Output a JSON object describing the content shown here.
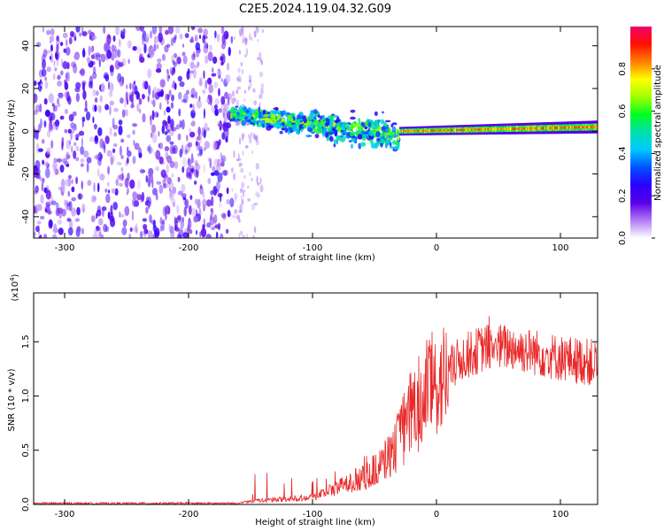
{
  "title": "C2E5.2024.119.04.32.G09",
  "chart_data": [
    {
      "type": "heatmap",
      "xlabel": "Height of straight line (km)",
      "ylabel": "Frequency (Hz)",
      "xlim": [
        -325,
        130
      ],
      "ylim": [
        -50,
        49
      ],
      "x_ticks": [
        -300,
        -200,
        -100,
        0,
        100
      ],
      "y_ticks": [
        -40,
        -20,
        0,
        20,
        40
      ],
      "colorbar": {
        "label": "Normalized spectral amplitude",
        "range": [
          0,
          1
        ],
        "ticks": [
          "0.0",
          "0.2",
          "0.4",
          "0.6",
          "0.8"
        ],
        "colors": [
          "#ffffff",
          "#b07cf5",
          "#5b00e8",
          "#2a00ff",
          "#0050ff",
          "#00c8ff",
          "#00e0b0",
          "#00ff20",
          "#a0ff00",
          "#ffff00",
          "#ff8000",
          "#ff1000",
          "#f0006e"
        ]
      },
      "regions": [
        {
          "x_range": [
            -325,
            -165
          ],
          "freq_range": [
            -50,
            49
          ],
          "pattern": "broadband noise",
          "amplitude": 0.15
        },
        {
          "x_range": [
            -165,
            -30
          ],
          "freq_center": [
            8,
            -2
          ],
          "freq_spread": [
            6,
            12
          ],
          "pattern": "scattered blobs",
          "amplitude": 0.35
        },
        {
          "x_range": [
            -30,
            130
          ],
          "freq_center": [
            0,
            2
          ],
          "freq_spread": [
            2,
            3
          ],
          "pattern": "narrow line",
          "amplitude": 0.9
        }
      ]
    },
    {
      "type": "line",
      "xlabel": "Height of straight line (km)",
      "ylabel": "SNR (10 * v/v)",
      "yscale_label": "(x10",
      "yscale_exp": "4",
      "yscale_close": ")",
      "xlim": [
        -325,
        130
      ],
      "ylim": [
        0,
        1.95
      ],
      "x_ticks": [
        -300,
        -200,
        -100,
        0,
        100
      ],
      "y_ticks": [
        "0.0",
        "0.5",
        "1.0",
        "1.5"
      ],
      "series": [
        {
          "color": "#e82a2a",
          "envelope": [
            {
              "x": -325,
              "y": 0.01
            },
            {
              "x": -160,
              "y": 0.01
            },
            {
              "x": -150,
              "y": 0.03
            },
            {
              "x": -120,
              "y": 0.05
            },
            {
              "x": -100,
              "y": 0.07
            },
            {
              "x": -80,
              "y": 0.15
            },
            {
              "x": -60,
              "y": 0.25
            },
            {
              "x": -45,
              "y": 0.35
            },
            {
              "x": -30,
              "y": 0.6
            },
            {
              "x": -20,
              "y": 0.85
            },
            {
              "x": -12,
              "y": 0.95
            },
            {
              "x": -8,
              "y": 1.1
            },
            {
              "x": 0,
              "y": 1.1
            },
            {
              "x": 20,
              "y": 1.35
            },
            {
              "x": 40,
              "y": 1.45
            },
            {
              "x": 60,
              "y": 1.45
            },
            {
              "x": 80,
              "y": 1.4
            },
            {
              "x": 100,
              "y": 1.35
            },
            {
              "x": 130,
              "y": 1.3
            }
          ]
        }
      ]
    }
  ]
}
